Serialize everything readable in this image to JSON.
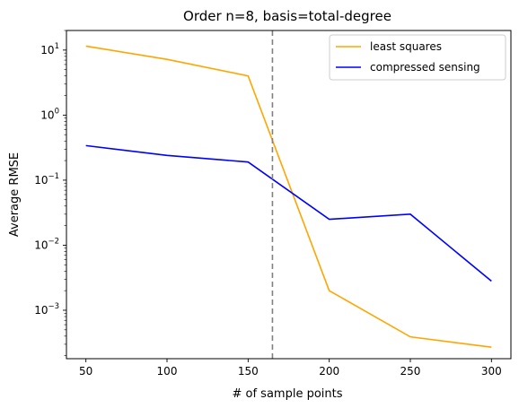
{
  "chart_data": {
    "type": "line",
    "title": "Order n=8, basis=total-degree",
    "xlabel": "# of sample points",
    "ylabel": "Average RMSE",
    "yscale": "log",
    "xlim": [
      38,
      312
    ],
    "ylim": [
      0.00018,
      20
    ],
    "x": [
      50,
      100,
      150,
      200,
      250,
      300
    ],
    "x_ticks": [
      50,
      100,
      150,
      200,
      250,
      300
    ],
    "y_ticks": [
      {
        "value": 10,
        "label": "10^1",
        "base": "10",
        "exp": "1"
      },
      {
        "value": 1,
        "label": "10^0",
        "base": "10",
        "exp": "0"
      },
      {
        "value": 0.1,
        "label": "10^-1",
        "base": "10",
        "exp": "−1"
      },
      {
        "value": 0.01,
        "label": "10^-2",
        "base": "10",
        "exp": "−2"
      },
      {
        "value": 0.001,
        "label": "10^-3",
        "base": "10",
        "exp": "−3"
      }
    ],
    "vline": {
      "x": 165,
      "color": "#808080",
      "style": "dashed"
    },
    "series": [
      {
        "name": "least squares",
        "color": "#ffa500",
        "values": [
          11.5,
          7.2,
          4.0,
          0.002,
          0.00039,
          0.00027
        ]
      },
      {
        "name": "compressed sensing",
        "color": "#0000ff",
        "values": [
          0.34,
          0.24,
          0.19,
          0.025,
          0.03,
          0.0028
        ]
      }
    ],
    "legend_position": "top-right",
    "grid": false
  }
}
